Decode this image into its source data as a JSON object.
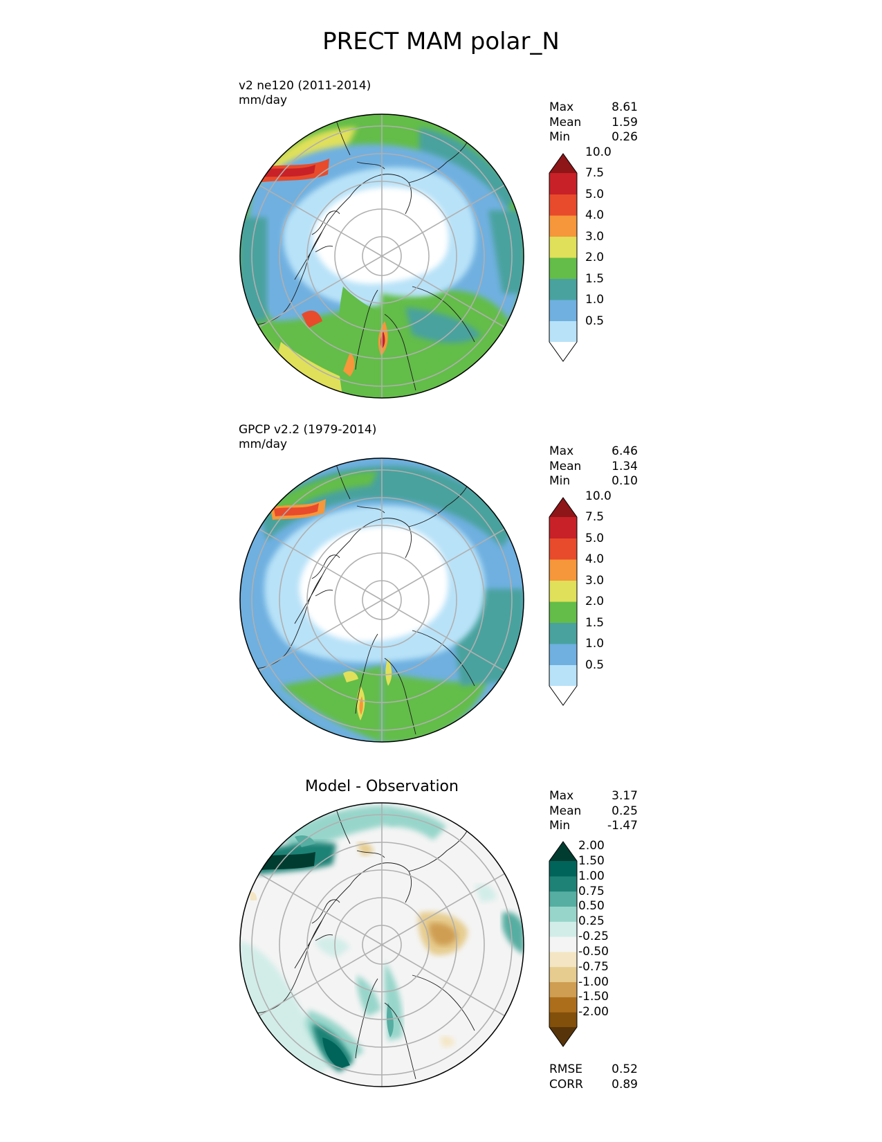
{
  "title": "PRECT MAM polar_N",
  "panels": [
    {
      "label_line1": "v2 ne120 (2011-2014)",
      "label_line2": "mm/day",
      "stats": [
        {
          "name": "Max",
          "value": "8.61"
        },
        {
          "name": "Mean",
          "value": "1.59"
        },
        {
          "name": "Min",
          "value": "0.26"
        }
      ],
      "colorbar": {
        "colors": [
          "#ffffff",
          "#b8e2f8",
          "#6fb0e0",
          "#49a29e",
          "#63bd48",
          "#e0e05a",
          "#f5973a",
          "#e84b2c",
          "#c82127",
          "#8e1518"
        ],
        "ticks": [
          "0.5",
          "1.0",
          "1.5",
          "2.0",
          "3.0",
          "4.0",
          "5.0",
          "7.5",
          "10.0"
        ]
      }
    },
    {
      "label_line1": "GPCP v2.2 (1979-2014)",
      "label_line2": "mm/day",
      "stats": [
        {
          "name": "Max",
          "value": "6.46"
        },
        {
          "name": "Mean",
          "value": "1.34"
        },
        {
          "name": "Min",
          "value": "0.10"
        }
      ],
      "colorbar": {
        "colors": [
          "#ffffff",
          "#b8e2f8",
          "#6fb0e0",
          "#49a29e",
          "#63bd48",
          "#e0e05a",
          "#f5973a",
          "#e84b2c",
          "#c82127",
          "#8e1518"
        ],
        "ticks": [
          "0.5",
          "1.0",
          "1.5",
          "2.0",
          "3.0",
          "4.0",
          "5.0",
          "7.5",
          "10.0"
        ]
      }
    },
    {
      "title": "Model - Observation",
      "stats": [
        {
          "name": "Max",
          "value": "3.17"
        },
        {
          "name": "Mean",
          "value": "0.25"
        },
        {
          "name": "Min",
          "value": "-1.47"
        }
      ],
      "colorbar": {
        "colors": [
          "#573409",
          "#82500a",
          "#ad6e1c",
          "#cf9e52",
          "#e6cc8e",
          "#f4e6c4",
          "#f4f4f4",
          "#d2ede8",
          "#97d5ca",
          "#56ada1",
          "#1f8276",
          "#00645a",
          "#003c30"
        ],
        "ticks": [
          "-2.00",
          "-1.50",
          "-1.00",
          "-0.75",
          "-0.50",
          "-0.25",
          "0.25",
          "0.50",
          "0.75",
          "1.00",
          "1.50",
          "2.00"
        ]
      },
      "footer": [
        {
          "name": "RMSE",
          "value": "0.52"
        },
        {
          "name": "CORR",
          "value": "0.89"
        }
      ]
    }
  ]
}
